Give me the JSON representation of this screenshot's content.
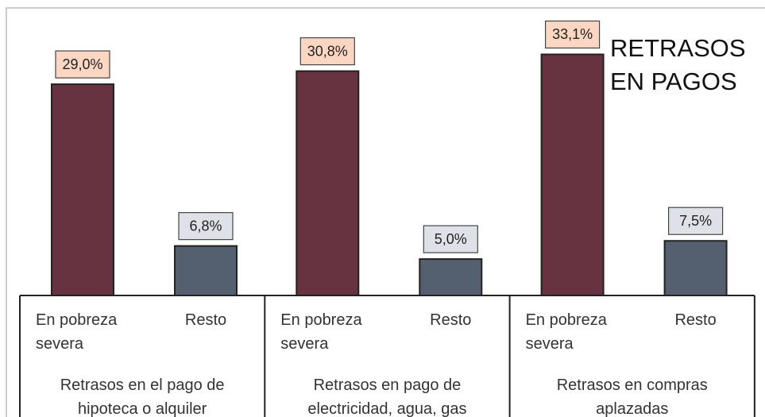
{
  "chart_data": {
    "type": "bar",
    "title": "RETRASOS EN PAGOS",
    "categories": [
      "Retrasos en el pago de hipoteca o alquiler",
      "Retrasos en pago de electricidad, agua, gas",
      "Retrasos en compras aplazadas"
    ],
    "series": [
      {
        "name": "En pobreza severa",
        "color": "#673340",
        "label_color": "#fbd6c2",
        "values": [
          29.0,
          30.8,
          33.1
        ],
        "value_labels": [
          "29,0%",
          "30,8%",
          "33,1%"
        ]
      },
      {
        "name": "Resto",
        "color": "#54606f",
        "label_color": "#dee1e7",
        "values": [
          6.8,
          5.0,
          7.5
        ],
        "value_labels": [
          "6,8%",
          "5,0%",
          "7,5%"
        ]
      }
    ]
  }
}
